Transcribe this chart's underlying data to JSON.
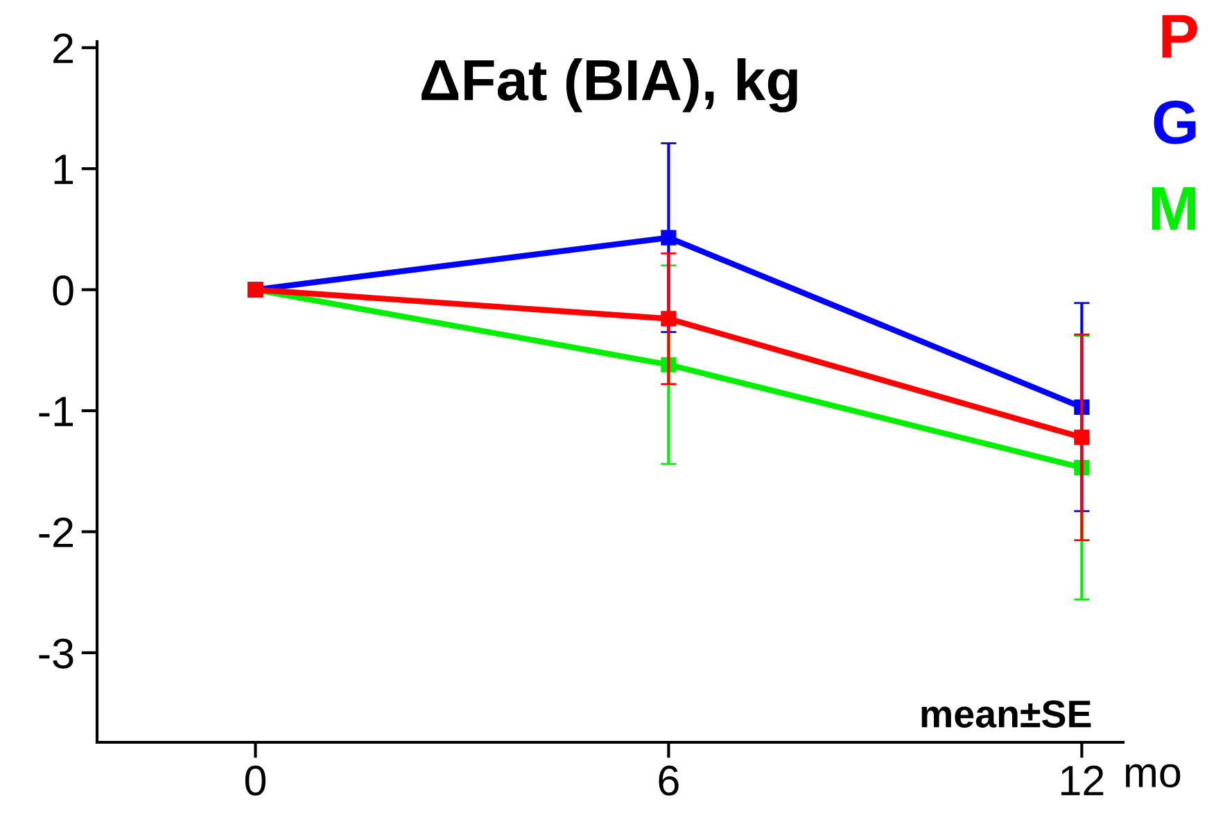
{
  "chart_data": {
    "type": "line",
    "title": "ΔFat (BIA), kg",
    "xlabel": "mo",
    "x": [
      0,
      6,
      12
    ],
    "series": [
      {
        "name": "P",
        "color": "#ff0000",
        "values": [
          0,
          -0.24,
          -1.22
        ],
        "errors": [
          null,
          0.54,
          0.85
        ]
      },
      {
        "name": "G",
        "color": "#0000ff",
        "values": [
          0,
          0.43,
          -0.97
        ],
        "errors": [
          null,
          0.78,
          0.86
        ]
      },
      {
        "name": "M",
        "color": "#00ee00",
        "values": [
          0,
          -0.62,
          -1.47
        ],
        "errors": [
          null,
          0.82,
          1.09
        ]
      }
    ],
    "xlim": [
      -2.3,
      12.6
    ],
    "xticks": [
      0,
      6,
      12
    ],
    "ylim": [
      -3.74,
      2.05
    ],
    "yticks": [
      -3,
      -2,
      -1,
      0,
      1,
      2
    ],
    "annotations": [
      "mean±SE"
    ],
    "marker": "square",
    "line_style": "solid",
    "legend": "top right",
    "grid": false
  }
}
